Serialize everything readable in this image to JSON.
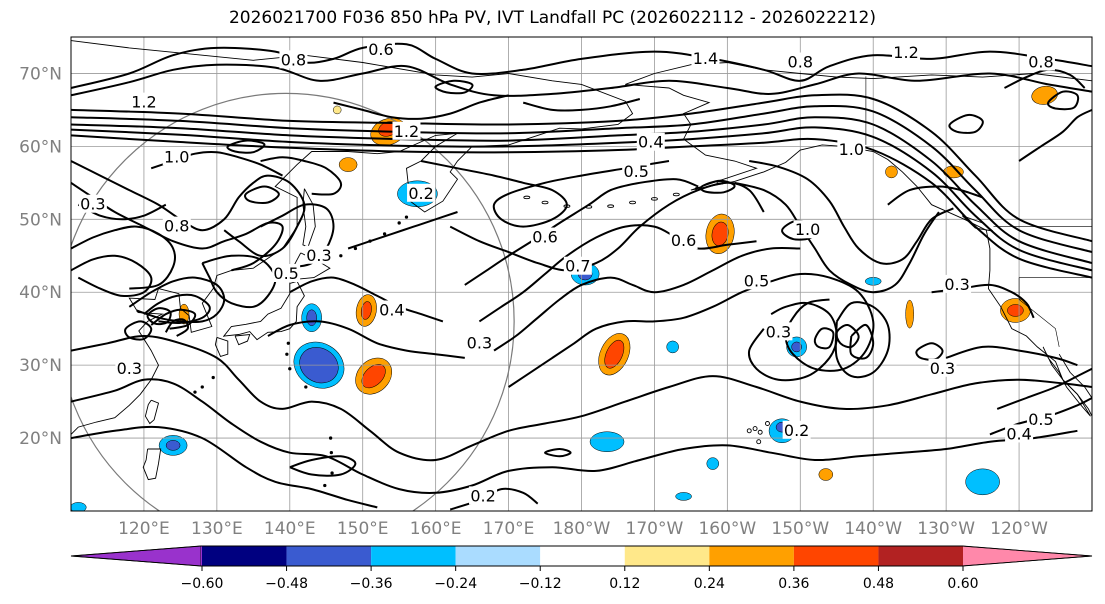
{
  "title": "2026021700 F036 850 hPa PV, IVT Landfall PC (2026022112 - 2026022212)",
  "map": {
    "projection": "equirectangular",
    "lon_range": [
      110,
      250
    ],
    "lat_range": [
      10,
      75
    ],
    "lat_ticks": [
      {
        "value": 70,
        "label": "70°N"
      },
      {
        "value": 60,
        "label": "60°N"
      },
      {
        "value": 50,
        "label": "50°N"
      },
      {
        "value": 40,
        "label": "40°N"
      },
      {
        "value": 30,
        "label": "30°N"
      },
      {
        "value": 20,
        "label": "20°N"
      }
    ],
    "lon_ticks": [
      {
        "value": 120,
        "label": "120°E"
      },
      {
        "value": 130,
        "label": "130°E"
      },
      {
        "value": 140,
        "label": "140°E"
      },
      {
        "value": 150,
        "label": "150°E"
      },
      {
        "value": 160,
        "label": "160°E"
      },
      {
        "value": 170,
        "label": "170°E"
      },
      {
        "value": 180,
        "label": "180°W"
      },
      {
        "value": 190,
        "label": "170°W"
      },
      {
        "value": 200,
        "label": "160°W"
      },
      {
        "value": 210,
        "label": "150°W"
      },
      {
        "value": 220,
        "label": "140°W"
      },
      {
        "value": 230,
        "label": "130°W"
      },
      {
        "value": 240,
        "label": "120°W"
      }
    ],
    "grid": true,
    "tick_label_color": "#808080"
  },
  "contour_labels": [
    {
      "text": "0.8",
      "lon": 140.5,
      "lat": 71.8
    },
    {
      "text": "0.6",
      "lon": 152.5,
      "lat": 73.2
    },
    {
      "text": "1.4",
      "lon": 197,
      "lat": 72
    },
    {
      "text": "0.8",
      "lon": 210,
      "lat": 71.5
    },
    {
      "text": "1.2",
      "lon": 224.5,
      "lat": 72.8
    },
    {
      "text": "0.8",
      "lon": 243,
      "lat": 71.5
    },
    {
      "text": "1.2",
      "lon": 120,
      "lat": 66
    },
    {
      "text": "1.2",
      "lon": 156,
      "lat": 62
    },
    {
      "text": "1.0",
      "lon": 124.5,
      "lat": 58.5
    },
    {
      "text": "0.4",
      "lon": 189.5,
      "lat": 60.5
    },
    {
      "text": "0.5",
      "lon": 187.5,
      "lat": 56.5
    },
    {
      "text": "1.0",
      "lon": 217,
      "lat": 59.5
    },
    {
      "text": "0.2",
      "lon": 158,
      "lat": 53.5
    },
    {
      "text": "0.3",
      "lon": 113,
      "lat": 52
    },
    {
      "text": "0.8",
      "lon": 124.5,
      "lat": 49
    },
    {
      "text": "0.6",
      "lon": 175,
      "lat": 47.5
    },
    {
      "text": "1.0",
      "lon": 211,
      "lat": 48.5
    },
    {
      "text": "0.6",
      "lon": 194,
      "lat": 47
    },
    {
      "text": "0.7",
      "lon": 179.5,
      "lat": 43.5
    },
    {
      "text": "0.5",
      "lon": 139.5,
      "lat": 42.5
    },
    {
      "text": "0.3",
      "lon": 144,
      "lat": 45
    },
    {
      "text": "0.5",
      "lon": 204,
      "lat": 41.5
    },
    {
      "text": "0.3",
      "lon": 231.5,
      "lat": 41
    },
    {
      "text": "0.4",
      "lon": 154,
      "lat": 37.5
    },
    {
      "text": "0.3",
      "lon": 166,
      "lat": 33
    },
    {
      "text": "0.3",
      "lon": 207,
      "lat": 34.5
    },
    {
      "text": "0.3",
      "lon": 229.5,
      "lat": 29.5
    },
    {
      "text": "0.3",
      "lon": 118,
      "lat": 29.5
    },
    {
      "text": "0.2",
      "lon": 209.5,
      "lat": 21
    },
    {
      "text": "0.5",
      "lon": 243,
      "lat": 22.5
    },
    {
      "text": "0.4",
      "lon": 240,
      "lat": 20.5
    },
    {
      "text": "0.2",
      "lon": 166.5,
      "lat": 12
    }
  ],
  "colorbar": {
    "ticks": [
      "−0.60",
      "−0.48",
      "−0.36",
      "−0.24",
      "−0.12",
      "0.12",
      "0.24",
      "0.36",
      "0.48",
      "0.60"
    ],
    "under_color": "#9932cc",
    "over_color": "#ff88aa",
    "bin_colors": [
      "#000080",
      "#3a5bd0",
      "#00bfff",
      "#aadcff",
      "#ffffff",
      "#ffe88a",
      "#ffa000",
      "#ff4500",
      "#b22222"
    ]
  },
  "shading_colors": {
    "neg_light": "#aadcff",
    "neg_mid": "#00bfff",
    "neg_strong": "#3a5bd0",
    "neg_deep": "#000080",
    "pos_light": "#ffe88a",
    "pos_mid": "#ffa000",
    "pos_strong": "#ff4500",
    "pos_deep": "#b22222"
  }
}
